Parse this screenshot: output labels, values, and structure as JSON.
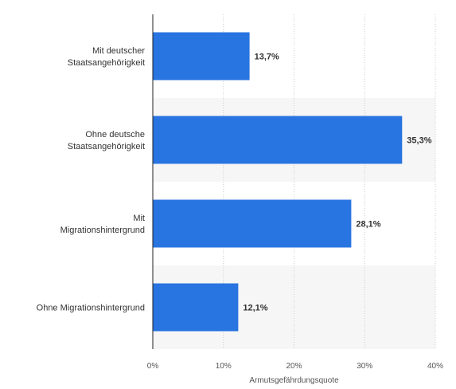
{
  "chart_data": {
    "type": "bar",
    "orientation": "horizontal",
    "categories": [
      [
        "Mit deutscher",
        "Staatsangehörigkeit"
      ],
      [
        "Ohne deutsche",
        "Staatsangehörigkeit"
      ],
      [
        "Mit",
        "Migrationshintergrund"
      ],
      [
        "Ohne Migrationshintergrund"
      ]
    ],
    "values": [
      13.7,
      35.3,
      28.1,
      12.1
    ],
    "value_labels": [
      "13,7%",
      "35,3%",
      "28,1%",
      "12,1%"
    ],
    "xlabel": "Armutsgefährdungsquote",
    "xlim": [
      0,
      40
    ],
    "ticks": [
      0,
      10,
      20,
      30,
      40
    ],
    "tick_labels": [
      "0%",
      "10%",
      "20%",
      "30%",
      "40%"
    ],
    "grid": true,
    "legend": "none",
    "colors": {
      "bar": "#2874e0",
      "band": "#f6f6f6",
      "grid": "#cccccc",
      "axis": "#222222",
      "text": "#333333"
    }
  }
}
